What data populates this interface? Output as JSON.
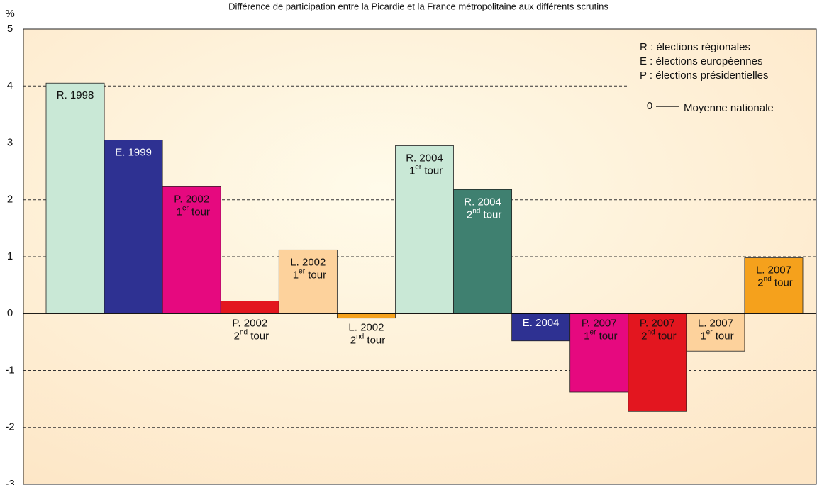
{
  "chart_data": {
    "type": "bar",
    "title": "Différence  de participation entre la Picardie et la France métropolitaine aux différents scrutins",
    "y_label": "%",
    "categories": [
      "R. 1998",
      "E. 1999",
      "P. 2002 1er tour",
      "P. 2002 2nd tour",
      "L. 2002 1er tour",
      "L. 2002 2nd tour",
      "R. 2004 1er tour",
      "R. 2004 2nd tour",
      "E. 2004",
      "P. 2007 1er tour",
      "P. 2007 2nd tour",
      "L. 2007 1er tour",
      "L. 2007 2nd tour"
    ],
    "values": [
      4.05,
      3.05,
      2.23,
      0.22,
      1.12,
      -0.08,
      2.95,
      2.18,
      -0.48,
      -1.38,
      -1.72,
      -0.66,
      0.98
    ],
    "colors": [
      "#c9e8d6",
      "#2e3192",
      "#e6097f",
      "#e3161f",
      "#fdd29c",
      "#f5a11c",
      "#c9e8d6",
      "#3f8070",
      "#2e3192",
      "#e6097f",
      "#e3161f",
      "#fdd29c",
      "#f5a11c"
    ],
    "ylim": [
      -3,
      5
    ],
    "yticks": [
      -3,
      -2,
      -1,
      0,
      1,
      2,
      3,
      4,
      5
    ],
    "grid": true,
    "legend": [
      "R : élections régionales",
      "E : élections européennes",
      "P : élections présidentielles"
    ],
    "baseline_value": 0,
    "baseline_label": "Moyenne nationale"
  }
}
